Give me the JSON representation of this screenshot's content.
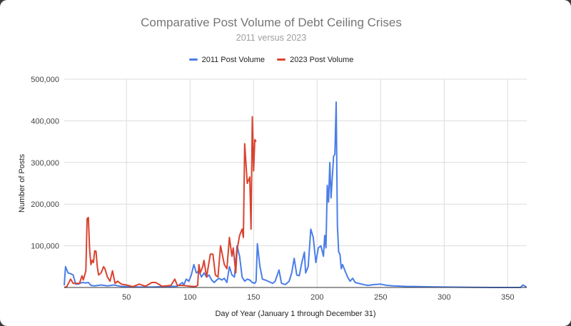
{
  "chart_data": {
    "type": "line",
    "title": "Comparative Post Volume of Debt Ceiling Crises",
    "subtitle": "2011 versus 2023",
    "xlabel": "Day of Year (January 1 through December 31)",
    "ylabel": "Number of Posts",
    "xlim": [
      1,
      365
    ],
    "ylim": [
      0,
      500000
    ],
    "xticks": [
      50,
      100,
      150,
      200,
      250,
      300,
      350
    ],
    "yticks": [
      0,
      100000,
      200000,
      300000,
      400000,
      500000
    ],
    "ytick_labels": [
      "0",
      "100,000",
      "200,000",
      "300,000",
      "400,000",
      "500,000"
    ],
    "grid": true,
    "legend": "top",
    "series": [
      {
        "name": "2011 Post Volume",
        "color": "#4a7ee8",
        "points": [
          [
            1,
            5000
          ],
          [
            2,
            50000
          ],
          [
            4,
            35000
          ],
          [
            6,
            33000
          ],
          [
            8,
            30000
          ],
          [
            10,
            8000
          ],
          [
            12,
            8000
          ],
          [
            15,
            12000
          ],
          [
            18,
            11000
          ],
          [
            20,
            12000
          ],
          [
            22,
            5000
          ],
          [
            25,
            4000
          ],
          [
            30,
            6000
          ],
          [
            35,
            4000
          ],
          [
            40,
            6000
          ],
          [
            45,
            3000
          ],
          [
            50,
            2000
          ],
          [
            60,
            1000
          ],
          [
            70,
            1000
          ],
          [
            80,
            2000
          ],
          [
            90,
            3000
          ],
          [
            94,
            12000
          ],
          [
            95,
            5000
          ],
          [
            97,
            20000
          ],
          [
            99,
            15000
          ],
          [
            101,
            30000
          ],
          [
            103,
            55000
          ],
          [
            105,
            35000
          ],
          [
            107,
            40000
          ],
          [
            109,
            25000
          ],
          [
            111,
            35000
          ],
          [
            113,
            25000
          ],
          [
            115,
            30000
          ],
          [
            117,
            18000
          ],
          [
            119,
            12000
          ],
          [
            121,
            18000
          ],
          [
            123,
            22000
          ],
          [
            125,
            18000
          ],
          [
            127,
            22000
          ],
          [
            129,
            12000
          ],
          [
            131,
            50000
          ],
          [
            133,
            30000
          ],
          [
            135,
            25000
          ],
          [
            137,
            100000
          ],
          [
            139,
            75000
          ],
          [
            141,
            25000
          ],
          [
            143,
            15000
          ],
          [
            145,
            20000
          ],
          [
            147,
            18000
          ],
          [
            149,
            12000
          ],
          [
            151,
            10000
          ],
          [
            152,
            15000
          ],
          [
            153,
            105000
          ],
          [
            155,
            50000
          ],
          [
            157,
            20000
          ],
          [
            160,
            17000
          ],
          [
            165,
            10000
          ],
          [
            167,
            15000
          ],
          [
            170,
            42000
          ],
          [
            172,
            10000
          ],
          [
            175,
            7000
          ],
          [
            178,
            15000
          ],
          [
            180,
            35000
          ],
          [
            182,
            70000
          ],
          [
            184,
            30000
          ],
          [
            186,
            28000
          ],
          [
            188,
            60000
          ],
          [
            190,
            85000
          ],
          [
            191,
            35000
          ],
          [
            193,
            50000
          ],
          [
            195,
            140000
          ],
          [
            197,
            120000
          ],
          [
            199,
            60000
          ],
          [
            201,
            95000
          ],
          [
            203,
            100000
          ],
          [
            205,
            75000
          ],
          [
            206,
            125000
          ],
          [
            207,
            95000
          ],
          [
            208,
            245000
          ],
          [
            209,
            205000
          ],
          [
            210,
            300000
          ],
          [
            211,
            215000
          ],
          [
            213,
            315000
          ],
          [
            214,
            320000
          ],
          [
            215,
            445000
          ],
          [
            216,
            150000
          ],
          [
            217,
            85000
          ],
          [
            218,
            80000
          ],
          [
            219,
            45000
          ],
          [
            220,
            55000
          ],
          [
            222,
            40000
          ],
          [
            224,
            25000
          ],
          [
            226,
            15000
          ],
          [
            228,
            22000
          ],
          [
            230,
            12000
          ],
          [
            235,
            8000
          ],
          [
            240,
            5000
          ],
          [
            245,
            7000
          ],
          [
            250,
            8000
          ],
          [
            255,
            5000
          ],
          [
            260,
            4000
          ],
          [
            270,
            2500
          ],
          [
            280,
            2000
          ],
          [
            290,
            1500
          ],
          [
            300,
            1000
          ],
          [
            320,
            500
          ],
          [
            340,
            0
          ],
          [
            360,
            0
          ],
          [
            362,
            6000
          ],
          [
            365,
            500
          ]
        ]
      },
      {
        "name": "2023 Post Volume",
        "color": "#d9432f",
        "points": [
          [
            1,
            0
          ],
          [
            3,
            2000
          ],
          [
            6,
            20000
          ],
          [
            8,
            10000
          ],
          [
            10,
            10000
          ],
          [
            13,
            10000
          ],
          [
            15,
            28000
          ],
          [
            16,
            18000
          ],
          [
            18,
            40000
          ],
          [
            19,
            165000
          ],
          [
            20,
            168000
          ],
          [
            21,
            90000
          ],
          [
            22,
            55000
          ],
          [
            23,
            65000
          ],
          [
            24,
            60000
          ],
          [
            25,
            88000
          ],
          [
            26,
            87000
          ],
          [
            27,
            50000
          ],
          [
            28,
            30000
          ],
          [
            30,
            35000
          ],
          [
            32,
            50000
          ],
          [
            33,
            45000
          ],
          [
            35,
            25000
          ],
          [
            37,
            15000
          ],
          [
            39,
            40000
          ],
          [
            41,
            10000
          ],
          [
            43,
            15000
          ],
          [
            46,
            8000
          ],
          [
            50,
            6000
          ],
          [
            55,
            2000
          ],
          [
            60,
            8000
          ],
          [
            65,
            3000
          ],
          [
            70,
            12000
          ],
          [
            73,
            12000
          ],
          [
            78,
            3000
          ],
          [
            85,
            5000
          ],
          [
            88,
            20000
          ],
          [
            90,
            5000
          ],
          [
            95,
            5000
          ],
          [
            100,
            3000
          ],
          [
            104,
            2000
          ],
          [
            106,
            5000
          ],
          [
            107,
            55000
          ],
          [
            108,
            35000
          ],
          [
            110,
            50000
          ],
          [
            111,
            65000
          ],
          [
            113,
            25000
          ],
          [
            116,
            80000
          ],
          [
            118,
            80000
          ],
          [
            120,
            30000
          ],
          [
            122,
            25000
          ],
          [
            124,
            100000
          ],
          [
            127,
            55000
          ],
          [
            129,
            45000
          ],
          [
            131,
            120000
          ],
          [
            133,
            75000
          ],
          [
            134,
            95000
          ],
          [
            136,
            35000
          ],
          [
            137,
            90000
          ],
          [
            139,
            125000
          ],
          [
            141,
            140000
          ],
          [
            142,
            120000
          ],
          [
            143,
            345000
          ],
          [
            145,
            250000
          ],
          [
            147,
            265000
          ],
          [
            148,
            140000
          ],
          [
            149,
            410000
          ],
          [
            150,
            280000
          ],
          [
            151,
            355000
          ],
          [
            152,
            350000
          ]
        ]
      }
    ]
  }
}
